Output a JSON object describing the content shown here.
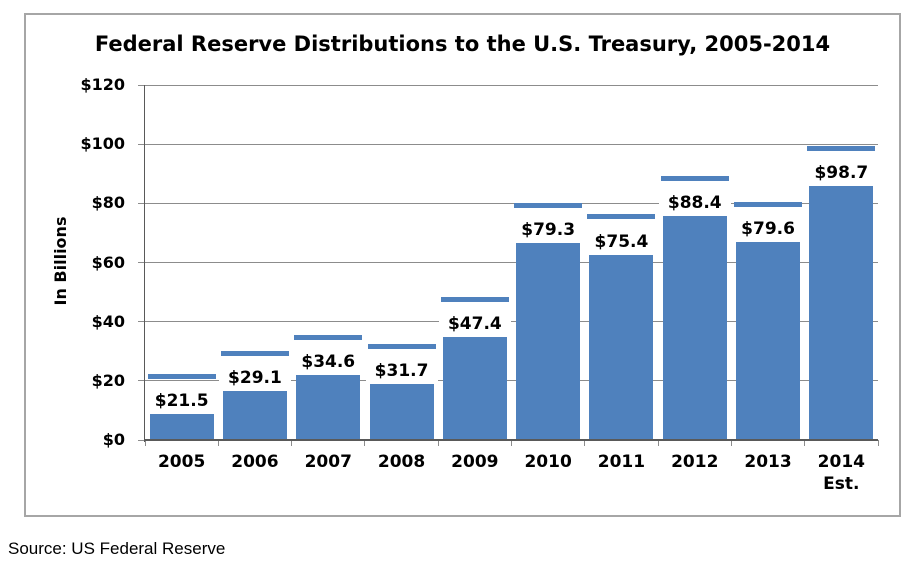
{
  "chart_data": {
    "type": "bar",
    "title": "Federal Reserve Distributions to the U.S. Treasury, 2005-2014",
    "ylabel": "In Billions",
    "xlabel": "",
    "ylim": [
      0,
      120
    ],
    "y_tick_step": 20,
    "y_tick_labels": [
      "$0",
      "$20",
      "$40",
      "$60",
      "$80",
      "$100",
      "$120"
    ],
    "categories": [
      "2005",
      "2006",
      "2007",
      "2008",
      "2009",
      "2010",
      "2011",
      "2012",
      "2013",
      "2014"
    ],
    "category_sub_labels": [
      "",
      "",
      "",
      "",
      "",
      "",
      "",
      "",
      "",
      "Est."
    ],
    "values": [
      21.5,
      29.1,
      34.6,
      31.7,
      47.4,
      79.3,
      75.4,
      88.4,
      79.6,
      98.7
    ],
    "value_labels": [
      "$21.5",
      "$29.1",
      "$34.6",
      "$31.7",
      "$47.4",
      "$79.3",
      "$75.4",
      "$88.4",
      "$79.6",
      "$98.7"
    ],
    "bar_tops_as_drawn": [
      8.8,
      16.4,
      21.9,
      19.0,
      34.7,
      66.6,
      62.7,
      75.7,
      66.9,
      86.0
    ],
    "marker_style": "horizontal dash above each bar positioned at the labeled value",
    "grid": true,
    "legend": "none",
    "colors": {
      "bar": "#4f81bd",
      "dash": "#4f81bd",
      "gridline": "#8c8c8c",
      "axis": "#595959",
      "frame_border": "#a6a6a6",
      "text": "#000000",
      "background": "#ffffff"
    }
  },
  "source": {
    "text": "Source: US Federal Reserve"
  }
}
